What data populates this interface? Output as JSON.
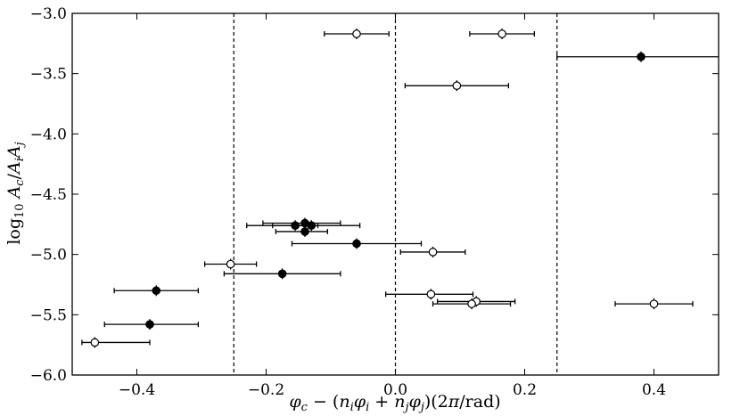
{
  "chart_data": {
    "type": "scatter",
    "xlabel": "φc − (niφi + njφj)(2π/rad)",
    "ylabel": "log10 Ac/AiAj",
    "xlim": [
      -0.5,
      0.5
    ],
    "ylim": [
      -6.0,
      -3.0
    ],
    "x_ticks": [
      -0.4,
      -0.2,
      0.0,
      0.2,
      0.4
    ],
    "x_tick_labels": [
      "−0.4",
      "−0.2",
      "0.0",
      "0.2",
      "0.4"
    ],
    "y_ticks": [
      -6.0,
      -5.5,
      -5.0,
      -4.5,
      -4.0,
      -3.5,
      -3.0
    ],
    "y_tick_labels": [
      "−6.0",
      "−5.5",
      "−5.0",
      "−4.5",
      "−4.0",
      "−3.5",
      "−3.0"
    ],
    "vertical_lines": [
      -0.25,
      0.0,
      0.25
    ],
    "series": [
      {
        "marker": "filled",
        "color": "#000000",
        "points": [
          {
            "x": 0.38,
            "y": -3.36,
            "xerr_low": 0.13,
            "xerr_high": 0.12
          },
          {
            "x": -0.155,
            "y": -4.76,
            "xerr_low": 0.035,
            "xerr_high": 0.035
          },
          {
            "x": -0.14,
            "y": -4.74,
            "xerr_low": 0.065,
            "xerr_high": 0.055
          },
          {
            "x": -0.13,
            "y": -4.76,
            "xerr_low": 0.1,
            "xerr_high": 0.075
          },
          {
            "x": -0.14,
            "y": -4.81,
            "xerr_low": 0.045,
            "xerr_high": 0.035
          },
          {
            "x": -0.06,
            "y": -4.91,
            "xerr_low": 0.1,
            "xerr_high": 0.1
          },
          {
            "x": -0.175,
            "y": -5.16,
            "xerr_low": 0.09,
            "xerr_high": 0.09
          },
          {
            "x": -0.37,
            "y": -5.3,
            "xerr_low": 0.065,
            "xerr_high": 0.065
          },
          {
            "x": -0.38,
            "y": -5.58,
            "xerr_low": 0.07,
            "xerr_high": 0.075
          }
        ]
      },
      {
        "marker": "open",
        "color": "#000000",
        "points": [
          {
            "x": -0.06,
            "y": -3.17,
            "xerr_low": 0.05,
            "xerr_high": 0.05
          },
          {
            "x": 0.165,
            "y": -3.17,
            "xerr_low": 0.05,
            "xerr_high": 0.05
          },
          {
            "x": 0.095,
            "y": -3.6,
            "xerr_low": 0.08,
            "xerr_high": 0.08
          },
          {
            "x": 0.058,
            "y": -4.98,
            "xerr_low": 0.05,
            "xerr_high": 0.05
          },
          {
            "x": -0.255,
            "y": -5.08,
            "xerr_low": 0.04,
            "xerr_high": 0.04
          },
          {
            "x": 0.055,
            "y": -5.33,
            "xerr_low": 0.07,
            "xerr_high": 0.065
          },
          {
            "x": 0.125,
            "y": -5.39,
            "xerr_low": 0.06,
            "xerr_high": 0.06
          },
          {
            "x": 0.118,
            "y": -5.41,
            "xerr_low": 0.06,
            "xerr_high": 0.06
          },
          {
            "x": 0.4,
            "y": -5.41,
            "xerr_low": 0.06,
            "xerr_high": 0.06
          },
          {
            "x": -0.465,
            "y": -5.73,
            "xerr_low": 0.02,
            "xerr_high": 0.085
          }
        ]
      }
    ]
  }
}
